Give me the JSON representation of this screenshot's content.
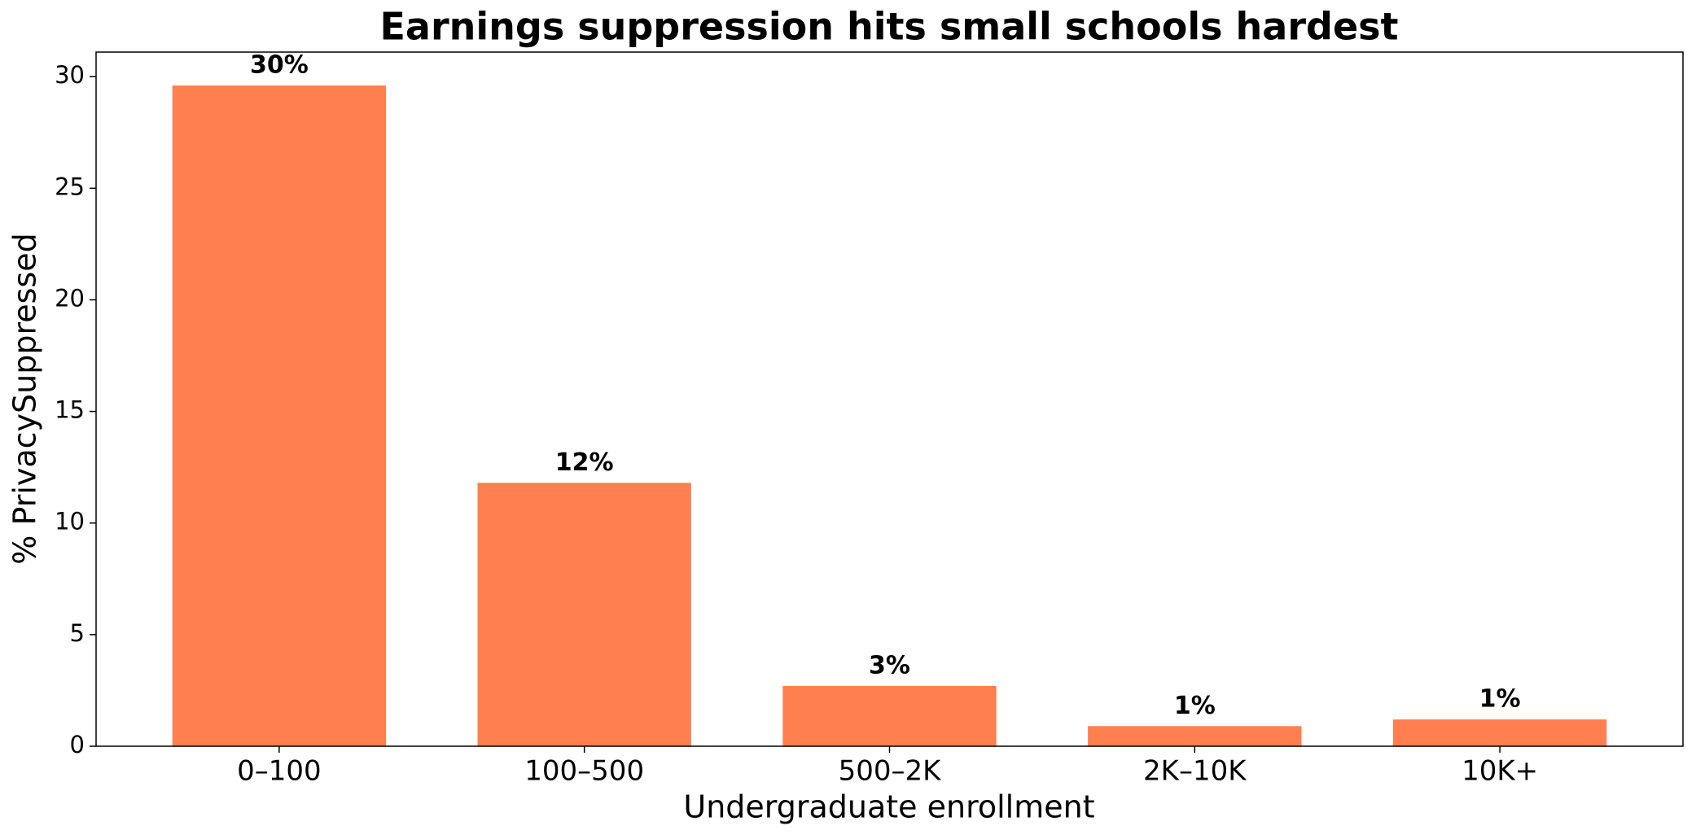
{
  "chart_data": {
    "type": "bar",
    "title": "Earnings suppression hits small schools hardest",
    "x_label": "Undergraduate enrollment",
    "y_label": "% PrivacySuppressed",
    "categories": [
      "0–100",
      "100–500",
      "500–2K",
      "2K–10K",
      "10K+"
    ],
    "values": [
      29.6,
      11.8,
      2.7,
      0.9,
      1.2
    ],
    "value_labels": [
      "30%",
      "12%",
      "3%",
      "1%",
      "1%"
    ],
    "color": "#ff7f50",
    "ylim": [
      0,
      31.1
    ],
    "yticks": [
      0,
      5,
      10,
      15,
      20,
      25,
      30
    ],
    "grid": false
  }
}
